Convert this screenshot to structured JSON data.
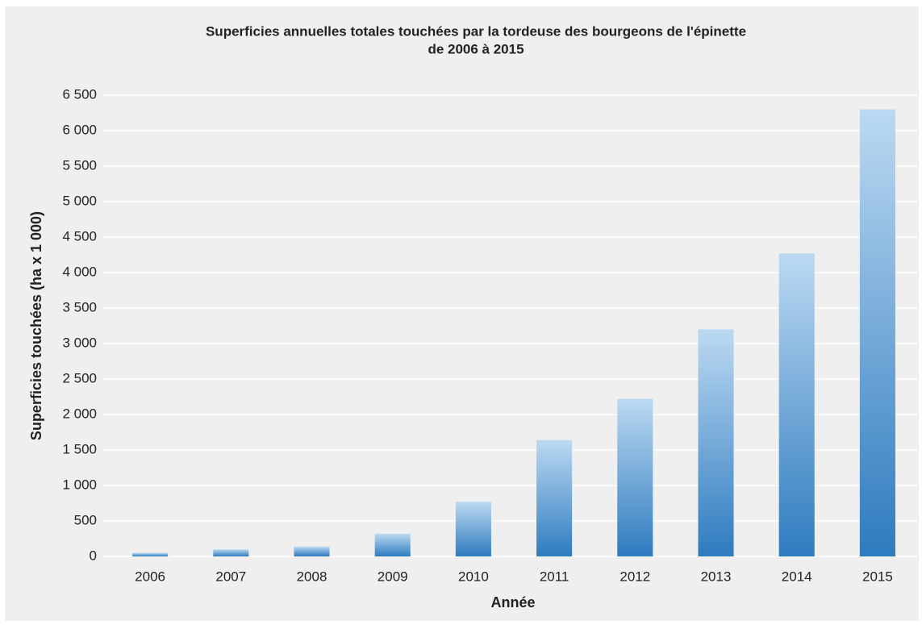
{
  "chart_data": {
    "type": "bar",
    "title": [
      "Superficies annuelles totales touchées par la tordeuse des bourgeons de l'épinette",
      "de 2006 à 2015"
    ],
    "xlabel": "Année",
    "ylabel": "Superficies touchées (ha x 1 000)",
    "categories": [
      "2006",
      "2007",
      "2008",
      "2009",
      "2010",
      "2011",
      "2012",
      "2013",
      "2014",
      "2015"
    ],
    "values": [
      50,
      100,
      140,
      320,
      770,
      1640,
      2220,
      3200,
      4270,
      6300
    ],
    "color": "#2e7bbf",
    "ylim": [
      0,
      6500
    ],
    "yticks": [
      0,
      500,
      {
        "value": 1000,
        "label": "1 000"
      },
      {
        "value": 1500,
        "label": "1 500"
      },
      {
        "value": 2000,
        "label": "2 000"
      },
      {
        "value": 2500,
        "label": "2 500"
      },
      {
        "value": 3000,
        "label": "3 000"
      },
      {
        "value": 3500,
        "label": "3 500"
      },
      {
        "value": 4000,
        "label": "4 000"
      },
      {
        "value": 4500,
        "label": "4 500"
      },
      {
        "value": 5000,
        "label": "5 000"
      },
      {
        "value": 5500,
        "label": "5 500"
      },
      {
        "value": 6000,
        "label": "6 000"
      },
      {
        "value": 6500,
        "label": "6 500"
      }
    ],
    "grid": true
  }
}
